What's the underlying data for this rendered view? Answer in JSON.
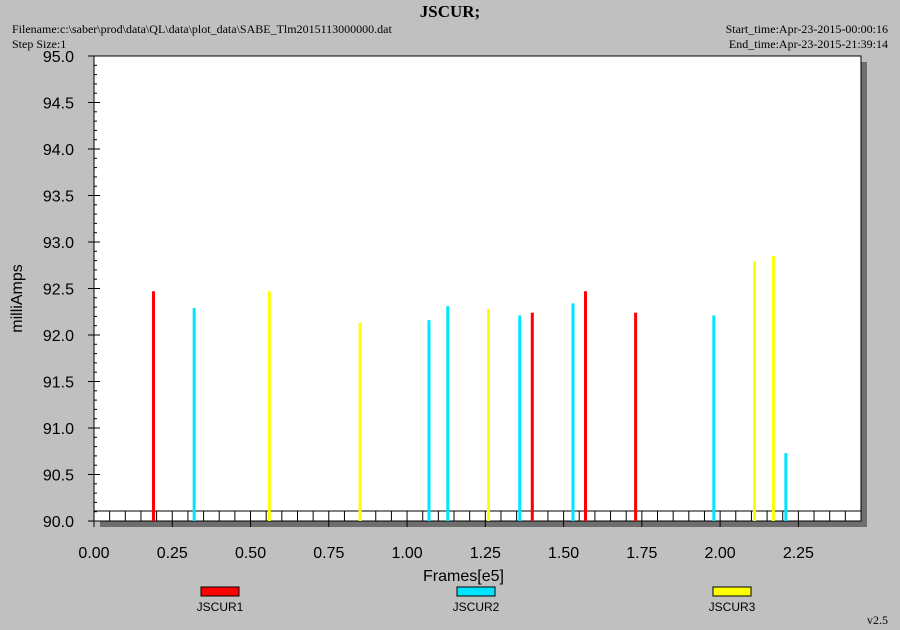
{
  "header": {
    "title": "JSCUR;",
    "filename": "Filename:c:\\saber\\prod\\data\\QL\\data\\plot_data\\SABE_Tlm2015113000000.dat",
    "step_size": "Step Size:1",
    "start_time": "Start_time:Apr-23-2015-00:00:16",
    "end_time": "End_time:Apr-23-2015-21:39:14"
  },
  "footer": {
    "version": "v2.5"
  },
  "chart_data": {
    "type": "bar",
    "title": "JSCUR;",
    "xlabel": "Frames[e5]",
    "ylabel": "milliAmps",
    "xlim": [
      0,
      2.45
    ],
    "ylim": [
      90.0,
      95.0
    ],
    "x_ticks": [
      "0.00",
      "0.25",
      "0.50",
      "0.75",
      "1.00",
      "1.25",
      "1.50",
      "1.75",
      "2.00",
      "2.25"
    ],
    "y_ticks": [
      "90.0",
      "90.5",
      "91.0",
      "91.5",
      "92.0",
      "92.5",
      "93.0",
      "93.5",
      "94.0",
      "94.5",
      "95.0"
    ],
    "grid": false,
    "legend_position": "bottom",
    "series": [
      {
        "name": "JSCUR1",
        "color": "#ff0000",
        "points": [
          [
            0.19,
            92.47
          ],
          [
            1.4,
            92.24
          ],
          [
            1.57,
            92.47
          ],
          [
            1.73,
            92.24
          ]
        ]
      },
      {
        "name": "JSCUR2",
        "color": "#00e5ff",
        "points": [
          [
            0.32,
            92.29
          ],
          [
            1.07,
            92.16
          ],
          [
            1.13,
            92.31
          ],
          [
            1.36,
            92.21
          ],
          [
            1.53,
            92.34
          ],
          [
            1.98,
            92.21
          ],
          [
            2.21,
            90.73
          ]
        ]
      },
      {
        "name": "JSCUR3",
        "color": "#ffff00",
        "points": [
          [
            0.56,
            92.47
          ],
          [
            0.85,
            92.13
          ],
          [
            1.26,
            92.28
          ],
          [
            2.11,
            92.79
          ],
          [
            2.17,
            92.85
          ]
        ]
      }
    ]
  }
}
